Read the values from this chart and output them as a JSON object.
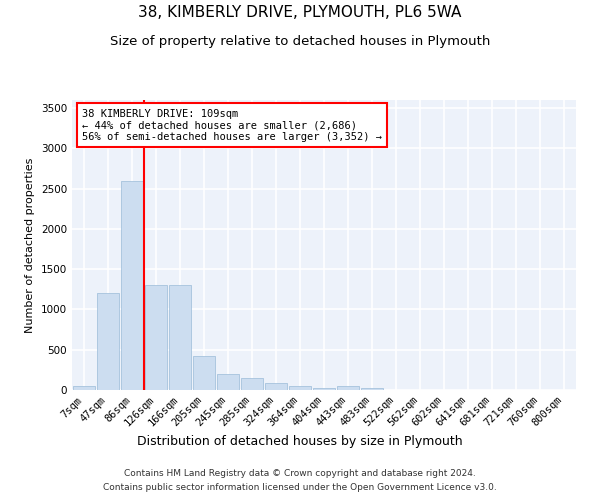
{
  "title": "38, KIMBERLY DRIVE, PLYMOUTH, PL6 5WA",
  "subtitle": "Size of property relative to detached houses in Plymouth",
  "xlabel": "Distribution of detached houses by size in Plymouth",
  "ylabel": "Number of detached properties",
  "categories": [
    "7sqm",
    "47sqm",
    "86sqm",
    "126sqm",
    "166sqm",
    "205sqm",
    "245sqm",
    "285sqm",
    "324sqm",
    "364sqm",
    "404sqm",
    "443sqm",
    "483sqm",
    "522sqm",
    "562sqm",
    "602sqm",
    "641sqm",
    "681sqm",
    "721sqm",
    "760sqm",
    "800sqm"
  ],
  "values": [
    50,
    1200,
    2600,
    1300,
    1300,
    420,
    200,
    150,
    90,
    55,
    30,
    55,
    25,
    5,
    0,
    0,
    0,
    0,
    0,
    0,
    0
  ],
  "bar_color": "#ccddf0",
  "bar_edge_color": "#9abbd8",
  "red_line_x": 2.5,
  "annotation_line1": "38 KIMBERLY DRIVE: 109sqm",
  "annotation_line2": "← 44% of detached houses are smaller (2,686)",
  "annotation_line3": "56% of semi-detached houses are larger (3,352) →",
  "ylim": [
    0,
    3600
  ],
  "yticks": [
    0,
    500,
    1000,
    1500,
    2000,
    2500,
    3000,
    3500
  ],
  "footer_line1": "Contains HM Land Registry data © Crown copyright and database right 2024.",
  "footer_line2": "Contains public sector information licensed under the Open Government Licence v3.0.",
  "bg_color": "#edf2fa",
  "grid_color": "#ffffff",
  "title_fontsize": 11,
  "subtitle_fontsize": 9.5,
  "xlabel_fontsize": 9,
  "ylabel_fontsize": 8,
  "tick_fontsize": 7.5,
  "footer_fontsize": 6.5,
  "annotation_fontsize": 7.5
}
